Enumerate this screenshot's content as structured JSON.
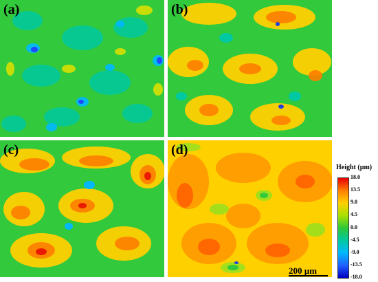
{
  "panels": [
    {
      "id": "a",
      "label": "(a)",
      "fill_level": "low"
    },
    {
      "id": "b",
      "label": "(b)",
      "fill_level": "medium"
    },
    {
      "id": "c",
      "label": "(c)",
      "fill_level": "medium-high"
    },
    {
      "id": "d",
      "label": "(d)",
      "fill_level": "high"
    }
  ],
  "scalebar": {
    "label": "200 µm"
  },
  "colorbar": {
    "title": "Height (µm)",
    "ticks": [
      "18.0",
      "13.5",
      "9.0",
      "4.5",
      "0.0",
      "-4.5",
      "-9.0",
      "-13.5",
      "-18.0"
    ],
    "colors": [
      "#e60000",
      "#ff7f00",
      "#ffd000",
      "#a8e000",
      "#2ec83a",
      "#00c8a0",
      "#00b8ff",
      "#2060ff",
      "#0000c0"
    ]
  }
}
